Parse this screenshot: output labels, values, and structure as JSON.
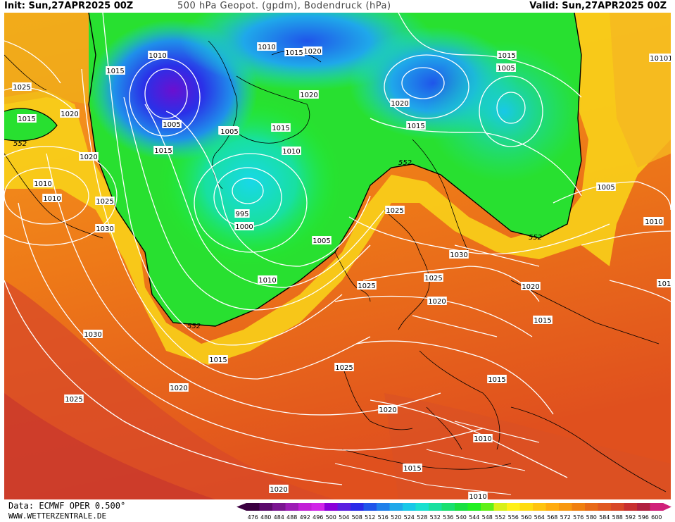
{
  "header": {
    "init": "Init: Sun,27APR2025 00Z",
    "title": "500 hPa Geopot. (gpdm), Bodendruck (hPa)",
    "valid": "Valid: Sun,27APR2025 00Z"
  },
  "footer": {
    "data_source": "Data: ECMWF OPER 0.500°",
    "website": "WWW.WETTERZENTRALE.DE"
  },
  "legend": {
    "values": [
      "476",
      "480",
      "484",
      "488",
      "492",
      "496",
      "500",
      "504",
      "508",
      "512",
      "516",
      "520",
      "524",
      "528",
      "532",
      "536",
      "540",
      "544",
      "548",
      "552",
      "556",
      "560",
      "564",
      "568",
      "572",
      "576",
      "580",
      "584",
      "588",
      "592",
      "596",
      "600"
    ],
    "colors": [
      "#3a0040",
      "#5b0a6b",
      "#7a1590",
      "#9c1cb5",
      "#c21fd6",
      "#d126e8",
      "#8a00d9",
      "#5a1fe0",
      "#2a2ae8",
      "#1f55ea",
      "#1f80ea",
      "#1fa8ea",
      "#18c8e8",
      "#18e0d0",
      "#18e0a0",
      "#18e070",
      "#18e040",
      "#20f020",
      "#60f018",
      "#d8f018",
      "#fff018",
      "#ffdc10",
      "#ffc410",
      "#ffac10",
      "#f89810",
      "#f08010",
      "#e86a18",
      "#e05820",
      "#d84828",
      "#c83030",
      "#b02040",
      "#d0207a"
    ]
  },
  "map_labels": {
    "isobars": [
      "1010",
      "1015",
      "1020",
      "1025",
      "1015",
      "1020",
      "1005",
      "1010",
      "1015",
      "1025",
      "1030",
      "1010",
      "1015",
      "1020",
      "1005",
      "995",
      "1000",
      "1005",
      "1010",
      "1015",
      "1015",
      "1020",
      "1010",
      "1015",
      "1020",
      "1015",
      "1020",
      "1005",
      "1010",
      "1005",
      "1015",
      "1005",
      "1010",
      "1025",
      "1030",
      "1025",
      "1020",
      "1020",
      "1015",
      "1025",
      "1015",
      "1020",
      "1030",
      "1020",
      "1025",
      "1010",
      "1015",
      "1010",
      "1020",
      "1025",
      "1010",
      "101",
      "1010",
      "1010"
    ],
    "geopotential": [
      "552",
      "552",
      "552",
      "552"
    ]
  },
  "colors": {
    "contour_552": "#000000",
    "isobar": "#ffffff"
  }
}
